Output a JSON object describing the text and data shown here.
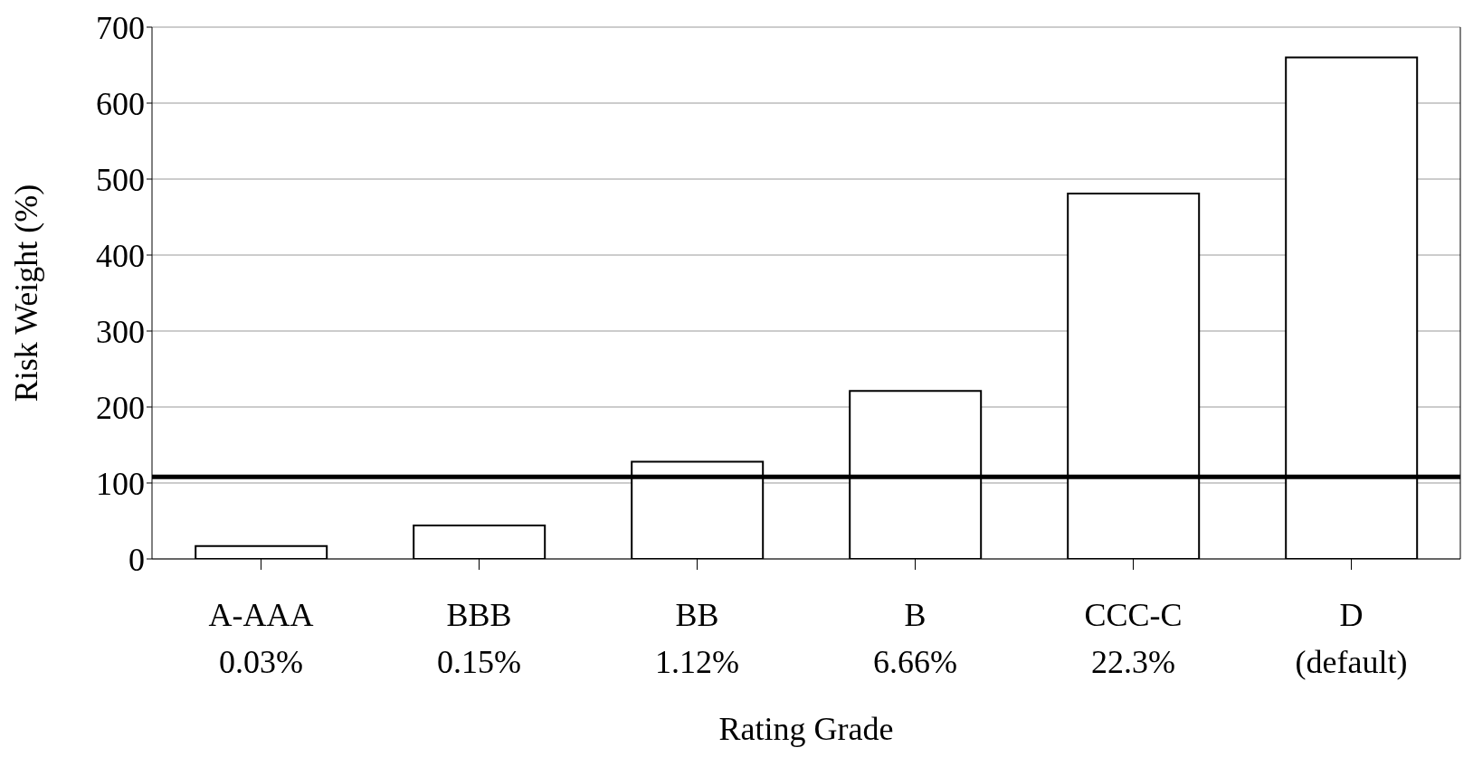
{
  "chart_data": {
    "type": "bar",
    "xlabel": "Rating Grade",
    "ylabel": "Risk Weight (%)",
    "categories": [
      "A-AAA\n0.03%",
      "BBB\n0.15%",
      "BB\n1.12%",
      "B\n6.66%",
      "CCC-C\n22.3%",
      "D\n(default)"
    ],
    "values": [
      17,
      44,
      128,
      221,
      481,
      660
    ],
    "color": "#ffffff",
    "ylim": [
      0,
      700
    ],
    "yticks": [
      0,
      100,
      200,
      300,
      400,
      500,
      600,
      700
    ],
    "grid": "y",
    "ref_lines": [
      {
        "axis": "y",
        "value": 108,
        "color": "#000000"
      }
    ]
  }
}
